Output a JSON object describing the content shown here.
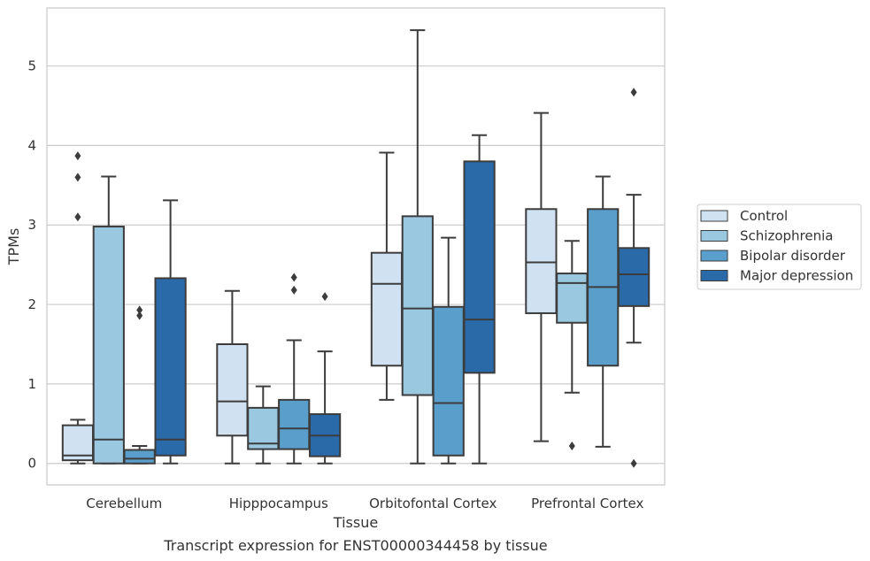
{
  "chart_data": {
    "type": "box",
    "caption": "Transcript expression for ENST00000344458 by tissue",
    "xlabel": "Tissue",
    "ylabel": "TPMs",
    "ylim": [
      -0.27,
      5.73
    ],
    "yticks": [
      0,
      1,
      2,
      3,
      4,
      5
    ],
    "grid": true,
    "legend_position": "right",
    "categories": [
      "Cerebellum",
      "Hipppocampus",
      "Orbitofontal Cortex",
      "Prefrontal Cortex"
    ],
    "series": [
      {
        "name": "Control",
        "color": "#d0e2f2",
        "boxes": [
          {
            "whislo": 0.0,
            "q1": 0.04,
            "med": 0.1,
            "q3": 0.48,
            "whishi": 0.55,
            "fliers": [
              3.1,
              3.6,
              3.87
            ]
          },
          {
            "whislo": 0.0,
            "q1": 0.35,
            "med": 0.78,
            "q3": 1.5,
            "whishi": 2.17,
            "fliers": []
          },
          {
            "whislo": 0.8,
            "q1": 1.23,
            "med": 2.26,
            "q3": 2.65,
            "whishi": 3.91,
            "fliers": []
          },
          {
            "whislo": 0.28,
            "q1": 1.89,
            "med": 2.53,
            "q3": 3.2,
            "whishi": 4.41,
            "fliers": []
          }
        ]
      },
      {
        "name": "Schizophrenia",
        "color": "#9ac8e0",
        "boxes": [
          {
            "whislo": 0.0,
            "q1": 0.0,
            "med": 0.3,
            "q3": 2.98,
            "whishi": 3.61,
            "fliers": []
          },
          {
            "whislo": 0.0,
            "q1": 0.18,
            "med": 0.25,
            "q3": 0.7,
            "whishi": 0.97,
            "fliers": []
          },
          {
            "whislo": 0.0,
            "q1": 0.86,
            "med": 1.95,
            "q3": 3.11,
            "whishi": 5.45,
            "fliers": []
          },
          {
            "whislo": 0.89,
            "q1": 1.77,
            "med": 2.27,
            "q3": 2.39,
            "whishi": 2.8,
            "fliers": [
              0.22
            ]
          }
        ]
      },
      {
        "name": "Bipolar disorder",
        "color": "#5a9ecb",
        "boxes": [
          {
            "whislo": 0.0,
            "q1": 0.0,
            "med": 0.06,
            "q3": 0.17,
            "whishi": 0.22,
            "fliers": [
              1.86,
              1.93
            ]
          },
          {
            "whislo": 0.0,
            "q1": 0.18,
            "med": 0.44,
            "q3": 0.8,
            "whishi": 1.55,
            "fliers": [
              2.18,
              2.34
            ]
          },
          {
            "whislo": 0.0,
            "q1": 0.1,
            "med": 0.76,
            "q3": 1.97,
            "whishi": 2.84,
            "fliers": []
          },
          {
            "whislo": 0.21,
            "q1": 1.23,
            "med": 2.22,
            "q3": 3.2,
            "whishi": 3.61,
            "fliers": []
          }
        ]
      },
      {
        "name": "Major depression",
        "color": "#2a6aa8",
        "boxes": [
          {
            "whislo": 0.0,
            "q1": 0.1,
            "med": 0.3,
            "q3": 2.33,
            "whishi": 3.31,
            "fliers": []
          },
          {
            "whislo": 0.0,
            "q1": 0.09,
            "med": 0.35,
            "q3": 0.62,
            "whishi": 1.41,
            "fliers": [
              2.1
            ]
          },
          {
            "whislo": 0.0,
            "q1": 1.14,
            "med": 1.81,
            "q3": 3.8,
            "whishi": 4.13,
            "fliers": []
          },
          {
            "whislo": 1.52,
            "q1": 1.98,
            "med": 2.38,
            "q3": 2.71,
            "whishi": 3.38,
            "fliers": [
              0.0,
              4.67
            ]
          }
        ]
      }
    ]
  }
}
